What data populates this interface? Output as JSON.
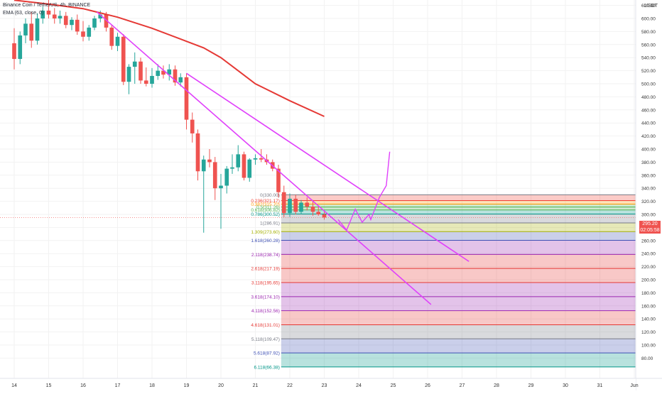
{
  "header": {
    "title": "Binance Coin / TetherUS, 4h, BINANCE",
    "indicator": "EMA (63, close, 0)"
  },
  "axis": {
    "unit": "USDT"
  },
  "current_price": {
    "value": "295.20",
    "countdown": "02:05:58",
    "color": "#ef5350"
  },
  "colors": {
    "up": "#26a69a",
    "down": "#ef5350",
    "ema": "#e53935",
    "trend": "#e040fb",
    "grid": "#f2f2f2"
  },
  "chart_data": {
    "type": "candlestick",
    "title": "Binance Coin / TetherUS, 4h, BINANCE",
    "x_ticks": [
      "14",
      "15",
      "16",
      "17",
      "18",
      "19",
      "20",
      "21",
      "22",
      "23",
      "24",
      "25",
      "26",
      "27",
      "28",
      "29",
      "30",
      "31",
      "Jun"
    ],
    "y_ticks": [
      80,
      100,
      120,
      140,
      160,
      180,
      200,
      220,
      240,
      260,
      280,
      300,
      320,
      340,
      360,
      380,
      400,
      420,
      440,
      460,
      480,
      500,
      520,
      540,
      560,
      580,
      600,
      620
    ],
    "ylim": [
      70,
      630
    ],
    "grid": true,
    "candles": [
      {
        "t": 14.0,
        "o": 562,
        "h": 585,
        "l": 522,
        "c": 538
      },
      {
        "t": 14.17,
        "o": 538,
        "h": 580,
        "l": 530,
        "c": 574
      },
      {
        "t": 14.33,
        "o": 574,
        "h": 600,
        "l": 562,
        "c": 592
      },
      {
        "t": 14.5,
        "o": 592,
        "h": 610,
        "l": 555,
        "c": 566
      },
      {
        "t": 14.67,
        "o": 566,
        "h": 608,
        "l": 560,
        "c": 600
      },
      {
        "t": 14.83,
        "o": 600,
        "h": 618,
        "l": 592,
        "c": 612
      },
      {
        "t": 15.0,
        "o": 612,
        "h": 630,
        "l": 600,
        "c": 606
      },
      {
        "t": 15.17,
        "o": 606,
        "h": 616,
        "l": 592,
        "c": 600
      },
      {
        "t": 15.33,
        "o": 600,
        "h": 612,
        "l": 592,
        "c": 604
      },
      {
        "t": 15.5,
        "o": 604,
        "h": 610,
        "l": 585,
        "c": 590
      },
      {
        "t": 15.67,
        "o": 590,
        "h": 602,
        "l": 582,
        "c": 598
      },
      {
        "t": 15.83,
        "o": 598,
        "h": 606,
        "l": 575,
        "c": 580
      },
      {
        "t": 16.0,
        "o": 580,
        "h": 596,
        "l": 565,
        "c": 572
      },
      {
        "t": 16.17,
        "o": 572,
        "h": 590,
        "l": 566,
        "c": 586
      },
      {
        "t": 16.33,
        "o": 586,
        "h": 604,
        "l": 582,
        "c": 600
      },
      {
        "t": 16.5,
        "o": 600,
        "h": 612,
        "l": 594,
        "c": 606
      },
      {
        "t": 16.67,
        "o": 606,
        "h": 610,
        "l": 580,
        "c": 586
      },
      {
        "t": 16.83,
        "o": 586,
        "h": 590,
        "l": 552,
        "c": 558
      },
      {
        "t": 17.0,
        "o": 558,
        "h": 578,
        "l": 550,
        "c": 572
      },
      {
        "t": 17.17,
        "o": 572,
        "h": 576,
        "l": 498,
        "c": 503
      },
      {
        "t": 17.33,
        "o": 503,
        "h": 530,
        "l": 484,
        "c": 526
      },
      {
        "t": 17.5,
        "o": 526,
        "h": 548,
        "l": 500,
        "c": 534
      },
      {
        "t": 17.67,
        "o": 534,
        "h": 540,
        "l": 500,
        "c": 505
      },
      {
        "t": 17.83,
        "o": 505,
        "h": 525,
        "l": 496,
        "c": 500
      },
      {
        "t": 18.0,
        "o": 500,
        "h": 524,
        "l": 494,
        "c": 512
      },
      {
        "t": 18.17,
        "o": 512,
        "h": 530,
        "l": 506,
        "c": 520
      },
      {
        "t": 18.33,
        "o": 520,
        "h": 528,
        "l": 508,
        "c": 514
      },
      {
        "t": 18.5,
        "o": 514,
        "h": 530,
        "l": 505,
        "c": 522
      },
      {
        "t": 18.67,
        "o": 522,
        "h": 528,
        "l": 497,
        "c": 502
      },
      {
        "t": 18.83,
        "o": 502,
        "h": 516,
        "l": 496,
        "c": 510
      },
      {
        "t": 19.0,
        "o": 510,
        "h": 516,
        "l": 430,
        "c": 445
      },
      {
        "t": 19.17,
        "o": 445,
        "h": 456,
        "l": 410,
        "c": 424
      },
      {
        "t": 19.33,
        "o": 424,
        "h": 430,
        "l": 352,
        "c": 366
      },
      {
        "t": 19.5,
        "o": 366,
        "h": 390,
        "l": 272,
        "c": 384
      },
      {
        "t": 19.67,
        "o": 384,
        "h": 400,
        "l": 372,
        "c": 380
      },
      {
        "t": 19.83,
        "o": 380,
        "h": 388,
        "l": 322,
        "c": 340
      },
      {
        "t": 20.0,
        "o": 340,
        "h": 362,
        "l": 278,
        "c": 344
      },
      {
        "t": 20.17,
        "o": 344,
        "h": 374,
        "l": 332,
        "c": 370
      },
      {
        "t": 20.33,
        "o": 370,
        "h": 392,
        "l": 362,
        "c": 372
      },
      {
        "t": 20.5,
        "o": 372,
        "h": 406,
        "l": 366,
        "c": 392
      },
      {
        "t": 20.67,
        "o": 392,
        "h": 396,
        "l": 352,
        "c": 356
      },
      {
        "t": 20.83,
        "o": 356,
        "h": 386,
        "l": 350,
        "c": 384
      },
      {
        "t": 21.0,
        "o": 384,
        "h": 392,
        "l": 376,
        "c": 386
      },
      {
        "t": 21.17,
        "o": 386,
        "h": 400,
        "l": 380,
        "c": 384
      },
      {
        "t": 21.33,
        "o": 384,
        "h": 392,
        "l": 376,
        "c": 380
      },
      {
        "t": 21.5,
        "o": 380,
        "h": 384,
        "l": 366,
        "c": 370
      },
      {
        "t": 21.67,
        "o": 370,
        "h": 376,
        "l": 326,
        "c": 334
      },
      {
        "t": 21.83,
        "o": 334,
        "h": 344,
        "l": 296,
        "c": 302
      },
      {
        "t": 22.0,
        "o": 302,
        "h": 332,
        "l": 296,
        "c": 324
      },
      {
        "t": 22.17,
        "o": 324,
        "h": 330,
        "l": 300,
        "c": 304
      },
      {
        "t": 22.33,
        "o": 304,
        "h": 322,
        "l": 300,
        "c": 318
      },
      {
        "t": 22.5,
        "o": 318,
        "h": 326,
        "l": 306,
        "c": 312
      },
      {
        "t": 22.67,
        "o": 312,
        "h": 322,
        "l": 298,
        "c": 304
      },
      {
        "t": 22.83,
        "o": 304,
        "h": 312,
        "l": 298,
        "c": 300
      },
      {
        "t": 23.0,
        "o": 300,
        "h": 304,
        "l": 292,
        "c": 295.2
      }
    ],
    "ema": [
      {
        "t": 14.0,
        "v": 628
      },
      {
        "t": 15.0,
        "v": 622
      },
      {
        "t": 16.0,
        "v": 615
      },
      {
        "t": 17.0,
        "v": 602
      },
      {
        "t": 18.0,
        "v": 585
      },
      {
        "t": 19.0,
        "v": 565
      },
      {
        "t": 19.5,
        "v": 555
      },
      {
        "t": 20.0,
        "v": 540
      },
      {
        "t": 20.5,
        "v": 520
      },
      {
        "t": 21.0,
        "v": 500
      },
      {
        "t": 22.0,
        "v": 474
      },
      {
        "t": 23.0,
        "v": 450
      }
    ],
    "trendlines": [
      {
        "from": [
          16.4,
          610
        ],
        "to": [
          26.1,
          162
        ]
      },
      {
        "from": [
          19.0,
          516
        ],
        "to": [
          27.2,
          228
        ]
      }
    ],
    "projection": [
      [
        23.4,
        292
      ],
      [
        23.65,
        276
      ],
      [
        23.9,
        308
      ],
      [
        24.1,
        288
      ],
      [
        24.3,
        300
      ],
      [
        24.35,
        292
      ],
      [
        24.6,
        326
      ],
      [
        24.8,
        344
      ],
      [
        24.9,
        396
      ]
    ],
    "fib_levels": [
      {
        "label": "0(330.00)",
        "value": 330.0,
        "color": "#787b86"
      },
      {
        "label": "0.236(321.17)",
        "value": 321.17,
        "color": "#f44336"
      },
      {
        "label": "0.382(315.70)",
        "value": 315.7,
        "color": "#ff9800"
      },
      {
        "label": "0.5(311.26)",
        "value": 311.26,
        "color": "#4caf50"
      },
      {
        "label": "0.618(306.82)",
        "value": 306.82,
        "color": "#4caf50"
      },
      {
        "label": "0.786(300.52)",
        "value": 300.52,
        "color": "#009688"
      },
      {
        "label": "1(286.91)",
        "value": 286.91,
        "color": "#787b86"
      },
      {
        "label": "1.309(273.60)",
        "value": 273.6,
        "color": "#a4b000"
      },
      {
        "label": "1.618(260.28)",
        "value": 260.28,
        "color": "#3f51b5"
      },
      {
        "label": "2.118(238.74)",
        "value": 238.74,
        "color": "#9c27b0"
      },
      {
        "label": "2.618(217.19)",
        "value": 217.19,
        "color": "#e53935"
      },
      {
        "label": "3.118(195.65)",
        "value": 195.65,
        "color": "#e53935"
      },
      {
        "label": "3.618(174.10)",
        "value": 174.1,
        "color": "#9c27b0"
      },
      {
        "label": "4.118(152.56)",
        "value": 152.56,
        "color": "#9c27b0"
      },
      {
        "label": "4.618(131.01)",
        "value": 131.01,
        "color": "#e53935"
      },
      {
        "label": "5.118(109.47)",
        "value": 109.47,
        "color": "#787b86"
      },
      {
        "label": "5.618(87.92)",
        "value": 87.92,
        "color": "#3f51b5"
      },
      {
        "label": "6.118(66.38)",
        "value": 66.38,
        "color": "#009688"
      }
    ]
  }
}
